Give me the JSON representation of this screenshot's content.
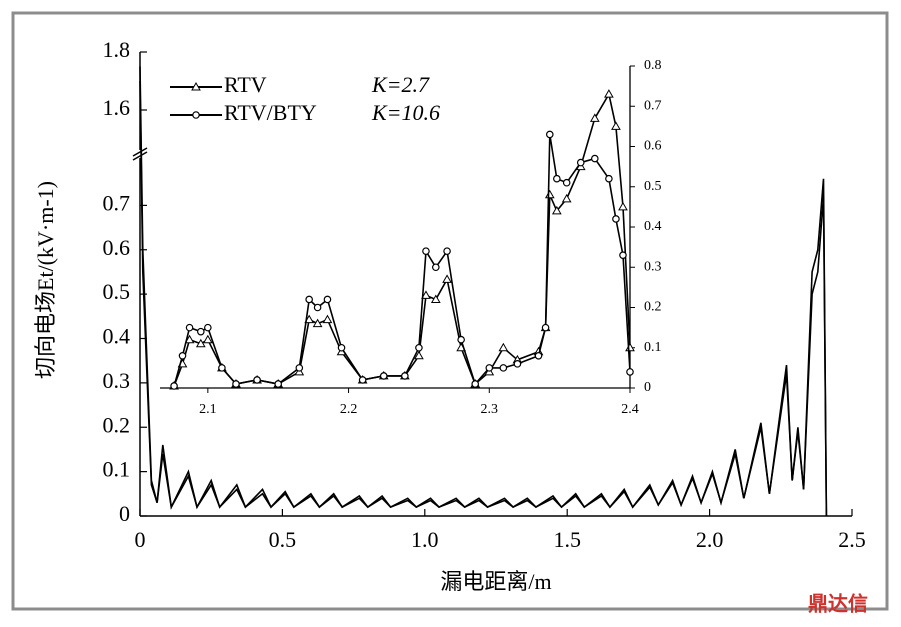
{
  "chart_data": [
    {
      "type": "line",
      "y_label": "切向电场Et/(kV·m-1)",
      "x_label": "漏电距离/m",
      "xlim": [
        0,
        2.5
      ],
      "xticks": [
        0,
        0.5,
        {
          "value": 1,
          "label": "1.0"
        },
        1.5,
        {
          "value": 2,
          "label": "2.0"
        },
        2.5
      ],
      "ylim": [
        0,
        1.8
      ],
      "y_break": [
        0.8,
        1.5
      ],
      "yticks": [
        0,
        0.1,
        0.2,
        0.3,
        0.4,
        0.5,
        0.6,
        0.7,
        1.6,
        1.8
      ],
      "x": [
        0,
        0.01,
        0.04,
        0.06,
        0.08,
        0.11,
        0.17,
        0.2,
        0.25,
        0.28,
        0.34,
        0.37,
        0.43,
        0.46,
        0.51,
        0.54,
        0.6,
        0.63,
        0.68,
        0.71,
        0.77,
        0.8,
        0.85,
        0.88,
        0.94,
        0.97,
        1.02,
        1.05,
        1.11,
        1.14,
        1.19,
        1.22,
        1.28,
        1.31,
        1.36,
        1.39,
        1.45,
        1.48,
        1.53,
        1.56,
        1.62,
        1.65,
        1.7,
        1.73,
        1.79,
        1.82,
        1.87,
        1.9,
        1.94,
        1.97,
        2.01,
        2.04,
        2.09,
        2.12,
        2.18,
        2.21,
        2.27,
        2.29,
        2.31,
        2.33,
        2.36,
        2.38,
        2.4,
        2.41
      ],
      "series": [
        {
          "name": "RTV",
          "color": "#000000",
          "values": [
            1.7,
            0.55,
            0.07,
            0.03,
            0.14,
            0.02,
            0.09,
            0.02,
            0.07,
            0.02,
            0.06,
            0.02,
            0.05,
            0.02,
            0.05,
            0.02,
            0.045,
            0.02,
            0.045,
            0.02,
            0.04,
            0.02,
            0.04,
            0.02,
            0.035,
            0.02,
            0.035,
            0.02,
            0.035,
            0.02,
            0.035,
            0.02,
            0.035,
            0.02,
            0.035,
            0.02,
            0.04,
            0.02,
            0.045,
            0.02,
            0.045,
            0.02,
            0.055,
            0.02,
            0.065,
            0.025,
            0.075,
            0.025,
            0.085,
            0.03,
            0.095,
            0.03,
            0.14,
            0.04,
            0.2,
            0.05,
            0.32,
            0.08,
            0.19,
            0.06,
            0.5,
            0.55,
            0.72,
            0
          ]
        },
        {
          "name": "RTV/BTY",
          "color": "#000000",
          "values": [
            1.75,
            0.6,
            0.08,
            0.03,
            0.16,
            0.02,
            0.1,
            0.02,
            0.08,
            0.02,
            0.07,
            0.02,
            0.06,
            0.02,
            0.055,
            0.02,
            0.05,
            0.02,
            0.05,
            0.02,
            0.045,
            0.02,
            0.045,
            0.02,
            0.04,
            0.02,
            0.04,
            0.02,
            0.04,
            0.02,
            0.04,
            0.02,
            0.04,
            0.02,
            0.04,
            0.02,
            0.045,
            0.02,
            0.05,
            0.02,
            0.05,
            0.02,
            0.06,
            0.02,
            0.07,
            0.025,
            0.08,
            0.025,
            0.09,
            0.03,
            0.1,
            0.03,
            0.15,
            0.04,
            0.21,
            0.05,
            0.34,
            0.08,
            0.2,
            0.06,
            0.55,
            0.6,
            0.76,
            0
          ]
        }
      ]
    },
    {
      "type": "line",
      "legend_notes": [
        "K=2.7",
        "K=10.6"
      ],
      "xlim": [
        2.066,
        2.4
      ],
      "xticks": [
        2.1,
        2.2,
        2.3,
        2.4
      ],
      "ylim": [
        0,
        0.8
      ],
      "yticks": [
        0,
        0.1,
        0.2,
        0.3,
        0.4,
        0.5,
        0.6,
        0.7,
        0.8
      ],
      "x": [
        2.076,
        2.082,
        2.087,
        2.095,
        2.1,
        2.11,
        2.12,
        2.135,
        2.15,
        2.165,
        2.172,
        2.178,
        2.185,
        2.195,
        2.21,
        2.225,
        2.24,
        2.25,
        2.255,
        2.262,
        2.27,
        2.28,
        2.29,
        2.3,
        2.31,
        2.32,
        2.335,
        2.34,
        2.343,
        2.348,
        2.355,
        2.365,
        2.375,
        2.385,
        2.39,
        2.395,
        2.4
      ],
      "series": [
        {
          "name": "RTV",
          "color": "#000000",
          "marker": "triangle",
          "values": [
            0.005,
            0.06,
            0.12,
            0.11,
            0.12,
            0.05,
            0.01,
            0.02,
            0.01,
            0.04,
            0.17,
            0.16,
            0.17,
            0.09,
            0.02,
            0.03,
            0.03,
            0.08,
            0.23,
            0.22,
            0.27,
            0.1,
            0.01,
            0.04,
            0.1,
            0.07,
            0.09,
            0.15,
            0.48,
            0.44,
            0.47,
            0.55,
            0.67,
            0.73,
            0.65,
            0.45,
            0.1
          ]
        },
        {
          "name": "RTV/BTY",
          "color": "#000000",
          "marker": "circle",
          "values": [
            0.005,
            0.08,
            0.15,
            0.14,
            0.15,
            0.05,
            0.01,
            0.02,
            0.01,
            0.05,
            0.22,
            0.2,
            0.22,
            0.1,
            0.02,
            0.03,
            0.03,
            0.1,
            0.34,
            0.3,
            0.34,
            0.12,
            0.01,
            0.05,
            0.05,
            0.06,
            0.08,
            0.15,
            0.63,
            0.52,
            0.51,
            0.56,
            0.57,
            0.52,
            0.42,
            0.33,
            0.04
          ]
        }
      ]
    }
  ],
  "watermark": "鼎达信"
}
